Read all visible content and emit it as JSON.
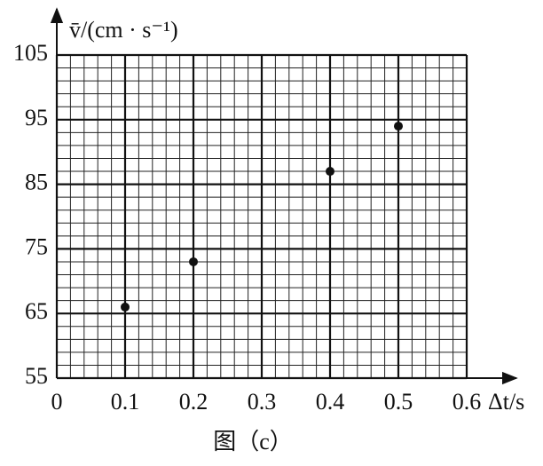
{
  "chart_data": {
    "type": "scatter",
    "title": "图（c）",
    "xlabel": "Δt/s",
    "ylabel": "v̄/(cm · s⁻¹)",
    "x": [
      0.1,
      0.2,
      0.4,
      0.5
    ],
    "values": [
      66,
      73,
      87,
      94
    ],
    "color": "#111111",
    "xlim": [
      0,
      0.6
    ],
    "ylim": [
      55,
      105
    ],
    "xticks": [
      0,
      0.1,
      0.2,
      0.3,
      0.4,
      0.5,
      0.6
    ],
    "yticks": [
      55,
      65,
      75,
      85,
      95,
      105
    ],
    "grid": true
  }
}
